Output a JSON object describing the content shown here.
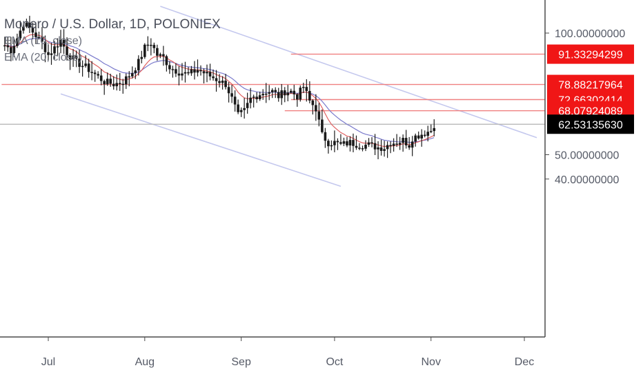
{
  "chart_data": {
    "type": "candlestick",
    "title": "Monero / U.S. Dollar, 1D, POLONIEX",
    "indicators": [
      "EMA (10, close)",
      "EMA (20, close)"
    ],
    "ylim": [
      37,
      109
    ],
    "y_ticks": [
      {
        "value": 100,
        "label": "100.00000000"
      },
      {
        "value": 50,
        "label": "50.00000000"
      },
      {
        "value": 40,
        "label": "40.00000000"
      }
    ],
    "x_ticks": [
      {
        "day": 0,
        "label": "Jul"
      },
      {
        "day": 31,
        "label": "Aug"
      },
      {
        "day": 62,
        "label": "Sep"
      },
      {
        "day": 92,
        "label": "Oct"
      },
      {
        "day": 123,
        "label": "Nov"
      },
      {
        "day": 153,
        "label": "Dec"
      }
    ],
    "last_price": {
      "value": 62.5313563,
      "label": "62.53135630"
    },
    "levels": [
      {
        "value": 91.33294299,
        "label": "91.33294299",
        "start_day": 78
      },
      {
        "value": 78.88217964,
        "label": "78.88217964",
        "start_day": -15
      },
      {
        "value": 72.66302414,
        "label": "72.66302414",
        "start_day": 78
      },
      {
        "value": 68.07924089,
        "label": "68.07924089",
        "start_day": 76
      }
    ],
    "channel": {
      "upper": [
        {
          "day": 36,
          "value": 111
        },
        {
          "day": 157,
          "value": 57
        }
      ],
      "lower": [
        {
          "day": 4,
          "value": 75
        },
        {
          "day": 94,
          "value": 37
        }
      ]
    },
    "colors": {
      "candle": "#1a1a1a",
      "ema_fast": "#e06060",
      "ema_slow": "#7a7acc",
      "level": "#f08080",
      "tag": "#f01616",
      "last": "#000000",
      "channel": "#c4c8ee"
    },
    "close_path": [
      {
        "day": -14,
        "value": 95
      },
      {
        "day": -12,
        "value": 93
      },
      {
        "day": -10,
        "value": 98
      },
      {
        "day": -8,
        "value": 104
      },
      {
        "day": -6,
        "value": 102
      },
      {
        "day": -4,
        "value": 99
      },
      {
        "day": -2,
        "value": 96
      },
      {
        "day": 0,
        "value": 91
      },
      {
        "day": 2,
        "value": 94
      },
      {
        "day": 4,
        "value": 97
      },
      {
        "day": 6,
        "value": 92
      },
      {
        "day": 9,
        "value": 88
      },
      {
        "day": 12,
        "value": 86
      },
      {
        "day": 15,
        "value": 83
      },
      {
        "day": 18,
        "value": 80
      },
      {
        "day": 21,
        "value": 79
      },
      {
        "day": 24,
        "value": 80
      },
      {
        "day": 27,
        "value": 84
      },
      {
        "day": 29,
        "value": 88
      },
      {
        "day": 31,
        "value": 94
      },
      {
        "day": 33,
        "value": 96
      },
      {
        "day": 35,
        "value": 91
      },
      {
        "day": 37,
        "value": 90
      },
      {
        "day": 39,
        "value": 86
      },
      {
        "day": 42,
        "value": 84
      },
      {
        "day": 45,
        "value": 83
      },
      {
        "day": 48,
        "value": 85
      },
      {
        "day": 51,
        "value": 83
      },
      {
        "day": 54,
        "value": 81
      },
      {
        "day": 57,
        "value": 79
      },
      {
        "day": 59,
        "value": 73
      },
      {
        "day": 61,
        "value": 66
      },
      {
        "day": 63,
        "value": 68
      },
      {
        "day": 65,
        "value": 73
      },
      {
        "day": 68,
        "value": 75
      },
      {
        "day": 70,
        "value": 76
      },
      {
        "day": 72,
        "value": 76
      },
      {
        "day": 74,
        "value": 74
      },
      {
        "day": 76,
        "value": 76
      },
      {
        "day": 78,
        "value": 76
      },
      {
        "day": 80,
        "value": 74
      },
      {
        "day": 82,
        "value": 78
      },
      {
        "day": 84,
        "value": 72
      },
      {
        "day": 86,
        "value": 69
      },
      {
        "day": 88,
        "value": 58
      },
      {
        "day": 90,
        "value": 55
      },
      {
        "day": 92,
        "value": 55
      },
      {
        "day": 94,
        "value": 54
      },
      {
        "day": 97,
        "value": 55
      },
      {
        "day": 100,
        "value": 54
      },
      {
        "day": 103,
        "value": 54
      },
      {
        "day": 106,
        "value": 53
      },
      {
        "day": 108,
        "value": 53
      },
      {
        "day": 110,
        "value": 55
      },
      {
        "day": 112,
        "value": 55
      },
      {
        "day": 114,
        "value": 56
      },
      {
        "day": 116,
        "value": 54
      },
      {
        "day": 117,
        "value": 57
      },
      {
        "day": 119,
        "value": 58
      },
      {
        "day": 121,
        "value": 59
      },
      {
        "day": 123,
        "value": 60
      },
      {
        "day": 124,
        "value": 62.5
      }
    ]
  }
}
